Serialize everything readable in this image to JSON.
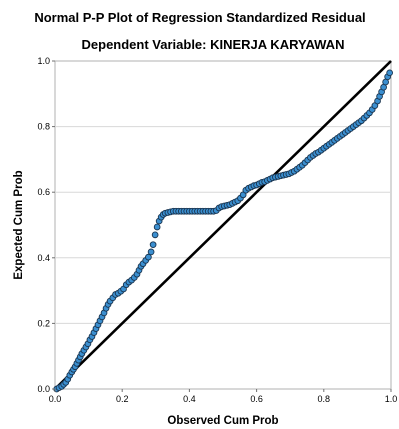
{
  "chart_data": {
    "type": "scatter",
    "title": "Normal P-P Plot of Regression Standardized Residual",
    "subtitle": "Dependent Variable: KINERJA KARYAWAN",
    "xlabel": "Observed Cum Prob",
    "ylabel": "Expected Cum Prob",
    "xlim": [
      0,
      1
    ],
    "ylim": [
      0,
      1
    ],
    "xticks": [
      "0.0",
      "0.2",
      "0.4",
      "0.6",
      "0.8",
      "1.0"
    ],
    "yticks": [
      "0.0",
      "0.2",
      "0.4",
      "0.6",
      "0.8",
      "1.0"
    ],
    "grid": "horizontal",
    "legend": "none",
    "reference_line": {
      "from": [
        0,
        0
      ],
      "to": [
        1,
        1
      ],
      "color": "#000000"
    },
    "point_color": "#3b8fd0",
    "point_edge_color": "#1a3550",
    "points": [
      [
        0.005,
        0.0
      ],
      [
        0.012,
        0.004
      ],
      [
        0.02,
        0.008
      ],
      [
        0.026,
        0.014
      ],
      [
        0.032,
        0.02
      ],
      [
        0.038,
        0.03
      ],
      [
        0.044,
        0.042
      ],
      [
        0.05,
        0.052
      ],
      [
        0.055,
        0.06
      ],
      [
        0.06,
        0.068
      ],
      [
        0.065,
        0.078
      ],
      [
        0.07,
        0.088
      ],
      [
        0.075,
        0.098
      ],
      [
        0.08,
        0.108
      ],
      [
        0.086,
        0.118
      ],
      [
        0.092,
        0.128
      ],
      [
        0.098,
        0.138
      ],
      [
        0.104,
        0.15
      ],
      [
        0.11,
        0.16
      ],
      [
        0.116,
        0.172
      ],
      [
        0.122,
        0.184
      ],
      [
        0.128,
        0.196
      ],
      [
        0.134,
        0.208
      ],
      [
        0.14,
        0.22
      ],
      [
        0.146,
        0.232
      ],
      [
        0.152,
        0.246
      ],
      [
        0.158,
        0.258
      ],
      [
        0.164,
        0.268
      ],
      [
        0.172,
        0.278
      ],
      [
        0.18,
        0.288
      ],
      [
        0.188,
        0.292
      ],
      [
        0.196,
        0.298
      ],
      [
        0.204,
        0.305
      ],
      [
        0.212,
        0.318
      ],
      [
        0.22,
        0.326
      ],
      [
        0.228,
        0.332
      ],
      [
        0.236,
        0.34
      ],
      [
        0.244,
        0.35
      ],
      [
        0.25,
        0.362
      ],
      [
        0.256,
        0.374
      ],
      [
        0.262,
        0.382
      ],
      [
        0.27,
        0.392
      ],
      [
        0.278,
        0.402
      ],
      [
        0.286,
        0.418
      ],
      [
        0.292,
        0.44
      ],
      [
        0.298,
        0.47
      ],
      [
        0.304,
        0.494
      ],
      [
        0.31,
        0.512
      ],
      [
        0.316,
        0.524
      ],
      [
        0.322,
        0.532
      ],
      [
        0.328,
        0.536
      ],
      [
        0.336,
        0.538
      ],
      [
        0.344,
        0.54
      ],
      [
        0.352,
        0.542
      ],
      [
        0.36,
        0.542
      ],
      [
        0.368,
        0.542
      ],
      [
        0.376,
        0.542
      ],
      [
        0.384,
        0.542
      ],
      [
        0.392,
        0.542
      ],
      [
        0.4,
        0.542
      ],
      [
        0.408,
        0.542
      ],
      [
        0.416,
        0.542
      ],
      [
        0.424,
        0.542
      ],
      [
        0.432,
        0.542
      ],
      [
        0.44,
        0.542
      ],
      [
        0.448,
        0.542
      ],
      [
        0.456,
        0.542
      ],
      [
        0.464,
        0.542
      ],
      [
        0.472,
        0.542
      ],
      [
        0.48,
        0.544
      ],
      [
        0.488,
        0.552
      ],
      [
        0.496,
        0.556
      ],
      [
        0.504,
        0.558
      ],
      [
        0.512,
        0.56
      ],
      [
        0.52,
        0.562
      ],
      [
        0.528,
        0.566
      ],
      [
        0.536,
        0.57
      ],
      [
        0.544,
        0.574
      ],
      [
        0.552,
        0.582
      ],
      [
        0.56,
        0.592
      ],
      [
        0.568,
        0.606
      ],
      [
        0.576,
        0.612
      ],
      [
        0.584,
        0.616
      ],
      [
        0.592,
        0.62
      ],
      [
        0.6,
        0.622
      ],
      [
        0.608,
        0.626
      ],
      [
        0.616,
        0.63
      ],
      [
        0.624,
        0.632
      ],
      [
        0.632,
        0.636
      ],
      [
        0.64,
        0.64
      ],
      [
        0.648,
        0.644
      ],
      [
        0.656,
        0.646
      ],
      [
        0.664,
        0.648
      ],
      [
        0.672,
        0.65
      ],
      [
        0.68,
        0.652
      ],
      [
        0.688,
        0.654
      ],
      [
        0.696,
        0.656
      ],
      [
        0.704,
        0.66
      ],
      [
        0.712,
        0.664
      ],
      [
        0.72,
        0.67
      ],
      [
        0.728,
        0.676
      ],
      [
        0.736,
        0.682
      ],
      [
        0.744,
        0.69
      ],
      [
        0.752,
        0.698
      ],
      [
        0.76,
        0.706
      ],
      [
        0.768,
        0.712
      ],
      [
        0.776,
        0.718
      ],
      [
        0.784,
        0.722
      ],
      [
        0.792,
        0.728
      ],
      [
        0.8,
        0.734
      ],
      [
        0.808,
        0.74
      ],
      [
        0.816,
        0.746
      ],
      [
        0.824,
        0.752
      ],
      [
        0.832,
        0.758
      ],
      [
        0.84,
        0.764
      ],
      [
        0.848,
        0.77
      ],
      [
        0.856,
        0.776
      ],
      [
        0.864,
        0.782
      ],
      [
        0.872,
        0.788
      ],
      [
        0.88,
        0.794
      ],
      [
        0.888,
        0.8
      ],
      [
        0.896,
        0.806
      ],
      [
        0.904,
        0.812
      ],
      [
        0.912,
        0.818
      ],
      [
        0.92,
        0.826
      ],
      [
        0.928,
        0.834
      ],
      [
        0.936,
        0.842
      ],
      [
        0.944,
        0.852
      ],
      [
        0.952,
        0.864
      ],
      [
        0.96,
        0.878
      ],
      [
        0.966,
        0.892
      ],
      [
        0.972,
        0.906
      ],
      [
        0.978,
        0.92
      ],
      [
        0.984,
        0.936
      ],
      [
        0.99,
        0.952
      ],
      [
        0.996,
        0.964
      ]
    ]
  }
}
